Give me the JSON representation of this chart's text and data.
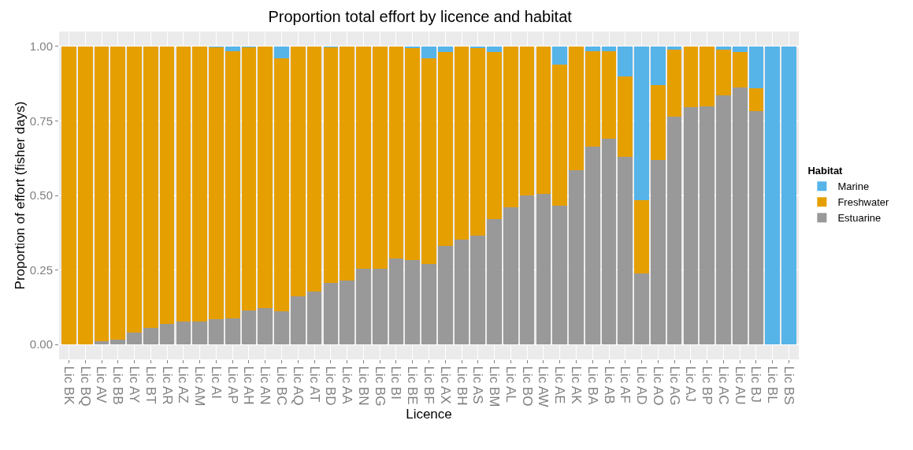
{
  "chart_data": {
    "type": "bar",
    "stacked": true,
    "title": "Proportion total effort by licence and habitat",
    "xlabel": "Licence",
    "ylabel": "Proportion of effort (fisher days)",
    "legend_title": "Habitat",
    "legend": "right",
    "grid": true,
    "categories": [
      "Lic BK",
      "Lic BQ",
      "Lic AV",
      "Lic BB",
      "Lic AY",
      "Lic BT",
      "Lic AR",
      "Lic AZ",
      "Lic AM",
      "Lic AI",
      "Lic AP",
      "Lic AH",
      "Lic AN",
      "Lic BC",
      "Lic AQ",
      "Lic AT",
      "Lic BD",
      "Lic AA",
      "Lic BN",
      "Lic BG",
      "Lic BI",
      "Lic BE",
      "Lic BF",
      "Lic AX",
      "Lic BH",
      "Lic AS",
      "Lic BM",
      "Lic AL",
      "Lic BO",
      "Lic AW",
      "Lic AE",
      "Lic AK",
      "Lic BA",
      "Lic AB",
      "Lic AF",
      "Lic AD",
      "Lic AO",
      "Lic AG",
      "Lic AJ",
      "Lic BP",
      "Lic AC",
      "Lic AU",
      "Lic BJ",
      "Lic BL",
      "Lic BS"
    ],
    "series": [
      {
        "name": "Estuarine",
        "color": "#999999",
        "values": [
          0,
          0,
          0.01,
          0.015,
          0.04,
          0.055,
          0.07,
          0.077,
          0.077,
          0.085,
          0.088,
          0.115,
          0.122,
          0.112,
          0.162,
          0.177,
          0.207,
          0.215,
          0.253,
          0.253,
          0.288,
          0.283,
          0.27,
          0.33,
          0.353,
          0.365,
          0.42,
          0.46,
          0.5,
          0.505,
          0.465,
          0.585,
          0.665,
          0.69,
          0.63,
          0.237,
          0.62,
          0.765,
          0.797,
          0.8,
          0.835,
          0.862,
          0.782,
          0,
          0
        ]
      },
      {
        "name": "Freshwater",
        "color": "#e69f00",
        "values": [
          1,
          1,
          0.99,
          0.985,
          0.96,
          0.945,
          0.93,
          0.923,
          0.923,
          0.912,
          0.897,
          0.882,
          0.878,
          0.848,
          0.838,
          0.823,
          0.79,
          0.785,
          0.747,
          0.747,
          0.712,
          0.712,
          0.69,
          0.652,
          0.647,
          0.63,
          0.562,
          0.54,
          0.5,
          0.495,
          0.475,
          0.415,
          0.32,
          0.295,
          0.27,
          0.248,
          0.25,
          0.225,
          0.203,
          0.2,
          0.155,
          0.118,
          0.078,
          0,
          0
        ]
      },
      {
        "name": "Marine",
        "color": "#56b4e9",
        "values": [
          0,
          0,
          0,
          0,
          0,
          0,
          0,
          0,
          0,
          0.003,
          0.015,
          0.003,
          0,
          0.04,
          0,
          0,
          0.003,
          0,
          0,
          0,
          0,
          0.005,
          0.04,
          0.018,
          0,
          0.005,
          0.018,
          0,
          0,
          0,
          0.06,
          0,
          0.015,
          0.015,
          0.1,
          0.515,
          0.13,
          0.01,
          0,
          0,
          0.01,
          0.02,
          0.14,
          1,
          1
        ]
      }
    ],
    "ylim": [
      -0.05,
      1.05
    ],
    "yticks": [
      {
        "value": 0,
        "label": "0.00"
      },
      {
        "value": 0.25,
        "label": "0.25"
      },
      {
        "value": 0.5,
        "label": "0.50"
      },
      {
        "value": 0.75,
        "label": "0.75"
      },
      {
        "value": 1,
        "label": "1.00"
      }
    ]
  }
}
